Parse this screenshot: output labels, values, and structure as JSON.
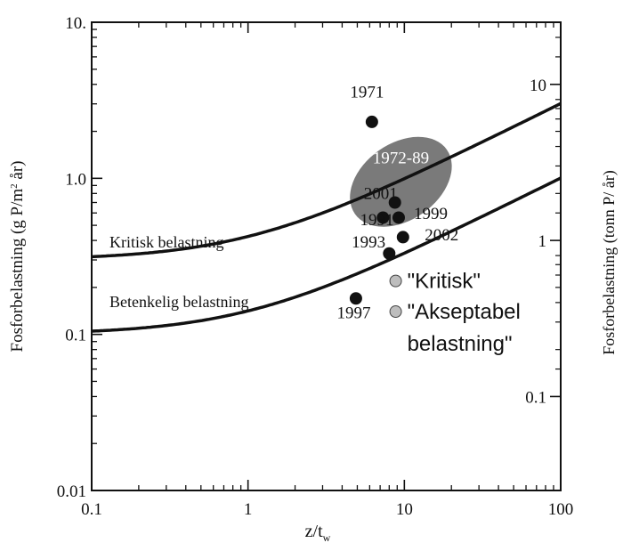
{
  "chart_data": {
    "type": "scatter",
    "x_scale": "log",
    "y_scale": "log",
    "xlim": [
      0.1,
      100
    ],
    "ylim": [
      0.01,
      10
    ],
    "xlabel": "z/t",
    "xlabel_sub": "w",
    "ylabel": "Fosforbelastning (g P/m",
    "ylabel_sup": "2",
    "ylabel_tail": " år)",
    "ylabel_right": "Fosforbelastning (tonn P/ år)",
    "x_ticks": [
      {
        "value": 0.1,
        "label": "0.1"
      },
      {
        "value": 1,
        "label": "1"
      },
      {
        "value": 10,
        "label": "10"
      },
      {
        "value": 100,
        "label": "100"
      }
    ],
    "y_ticks": [
      {
        "value": 0.01,
        "label": "0.01"
      },
      {
        "value": 0.1,
        "label": "0.1"
      },
      {
        "value": 1,
        "label": "1.0"
      },
      {
        "value": 10,
        "label": "10."
      }
    ],
    "y_right_ticks": [
      {
        "value": 0.04,
        "label": "0.1"
      },
      {
        "value": 0.4,
        "label": "1"
      },
      {
        "value": 4,
        "label": "10"
      }
    ],
    "curves": [
      {
        "label": "Kritisk belastning",
        "a": 0.3,
        "label_x": 0.13,
        "label_y": 0.36
      },
      {
        "label": "Betenkelig belastning",
        "a": 0.1,
        "label_x": 0.13,
        "label_y": 0.15
      }
    ],
    "ellipse": {
      "label": "1972-89",
      "cx": 9.5,
      "cy": 0.95,
      "color": "#7a7a7a"
    },
    "points": [
      {
        "label": "1971",
        "x": 6.2,
        "y": 2.3,
        "label_x": 4.5,
        "label_y": 3.3
      },
      {
        "label": "2001",
        "x": 8.7,
        "y": 0.7,
        "label_x": 5.5,
        "label_y": 0.74
      },
      {
        "label": "1991",
        "x": 7.3,
        "y": 0.56,
        "label_x": 5.2,
        "label_y": 0.5
      },
      {
        "label": "1999",
        "x": 9.2,
        "y": 0.56,
        "label_x": 11.5,
        "label_y": 0.55
      },
      {
        "label": "1993",
        "x": 8.0,
        "y": 0.33,
        "label_x": 4.6,
        "label_y": 0.36
      },
      {
        "label": "2002",
        "x": 9.8,
        "y": 0.42,
        "label_x": 13.5,
        "label_y": 0.4
      },
      {
        "label": "1997",
        "x": 4.9,
        "y": 0.17,
        "label_x": 3.7,
        "label_y": 0.127
      }
    ],
    "markers": [
      {
        "label": "\"Kritisk\"",
        "x": 8.8,
        "y": 0.22,
        "color": "#bdbdbd"
      },
      {
        "label": "\"Akseptabel",
        "label2": "belastning\"",
        "x": 8.8,
        "y": 0.14,
        "color": "#bdbdbd"
      }
    ]
  }
}
